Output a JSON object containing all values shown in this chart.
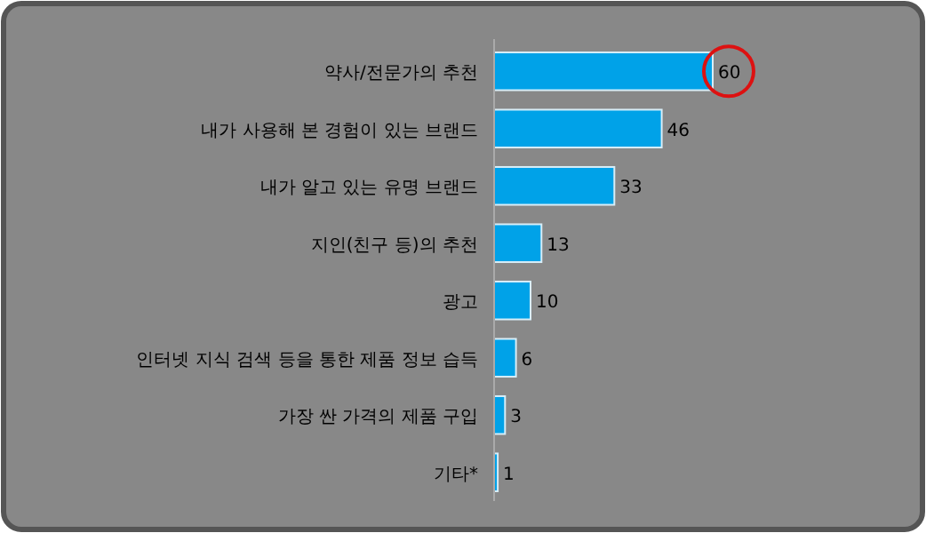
{
  "chart_data": {
    "type": "bar",
    "orientation": "horizontal",
    "categories": [
      "약사/전문가의 추천",
      "내가 사용해 본 경험이 있는 브랜드",
      "내가 알고 있는 유명 브랜드",
      "지인(친구 등)의 추천",
      "광고",
      "인터넷 지식 검색 등을 통한 제품 정보 습득",
      "가장 싼 가격의 제품 구입",
      "기타*"
    ],
    "values": [
      60,
      46,
      33,
      13,
      10,
      6,
      3,
      1
    ],
    "color": "#00a2e8",
    "data_labels": true
  }
}
